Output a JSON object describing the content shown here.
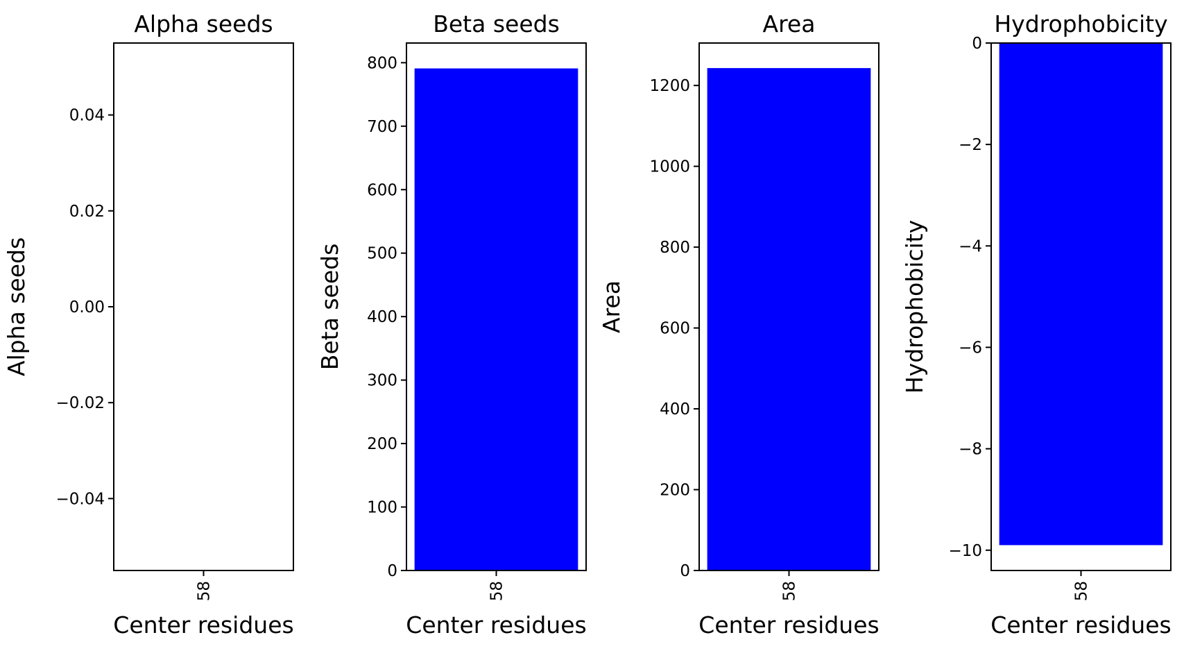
{
  "chart_data": [
    {
      "type": "bar",
      "title": "Alpha seeds",
      "xlabel": "Center residues",
      "ylabel": "Alpha seeds",
      "categories": [
        "58"
      ],
      "values": [
        0
      ],
      "ylim": [
        -0.055,
        0.055
      ],
      "yticks": [
        -0.04,
        -0.02,
        0.0,
        0.02,
        0.04
      ],
      "ytick_labels": [
        "−0.04",
        "−0.02",
        "0.00",
        "0.02",
        "0.04"
      ],
      "bar_color": "#0000ff"
    },
    {
      "type": "bar",
      "title": "Beta seeds",
      "xlabel": "Center residues",
      "ylabel": "Beta seeds",
      "categories": [
        "58"
      ],
      "values": [
        791
      ],
      "ylim": [
        0,
        831
      ],
      "yticks": [
        0,
        100,
        200,
        300,
        400,
        500,
        600,
        700,
        800
      ],
      "ytick_labels": [
        "0",
        "100",
        "200",
        "300",
        "400",
        "500",
        "600",
        "700",
        "800"
      ],
      "bar_color": "#0000ff"
    },
    {
      "type": "bar",
      "title": "Area",
      "xlabel": "Center residues",
      "ylabel": "Area",
      "categories": [
        "58"
      ],
      "values": [
        1243
      ],
      "ylim": [
        0,
        1305
      ],
      "yticks": [
        0,
        200,
        400,
        600,
        800,
        1000,
        1200
      ],
      "ytick_labels": [
        "0",
        "200",
        "400",
        "600",
        "800",
        "1000",
        "1200"
      ],
      "bar_color": "#0000ff"
    },
    {
      "type": "bar",
      "title": "Hydrophobicity",
      "xlabel": "Center residues",
      "ylabel": "Hydrophobicity",
      "categories": [
        "58"
      ],
      "values": [
        -9.9
      ],
      "ylim": [
        -10.4,
        0
      ],
      "yticks": [
        -10,
        -8,
        -6,
        -4,
        -2,
        0
      ],
      "ytick_labels": [
        "−10",
        "−8",
        "−6",
        "−4",
        "−2",
        "0"
      ],
      "bar_color": "#0000ff"
    }
  ]
}
